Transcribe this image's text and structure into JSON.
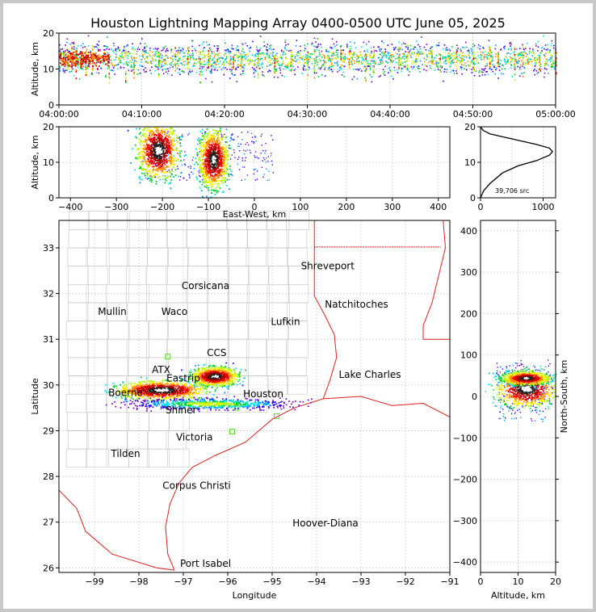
{
  "title": "Houston Lightning Mapping Array 0400-0500 UTC June 05, 2025",
  "chart_data": [
    {
      "type": "scatter",
      "panel": "altitude-time",
      "ylabel": "Altitude, km",
      "xlabel": "",
      "x_ticks": [
        "04:00:00",
        "04:10:00",
        "04:20:00",
        "04:30:00",
        "04:40:00",
        "04:50:00",
        "05:00:00"
      ],
      "x_range_minutes": [
        0,
        60
      ],
      "ylim": [
        0,
        20
      ],
      "y_ticks": [
        0,
        10,
        20
      ],
      "source_band_km": [
        5,
        18
      ],
      "core_altitude_km": 13,
      "burst_minutes": [
        0.5,
        1,
        1.5,
        2,
        2.6,
        3.2,
        4,
        6,
        8,
        9,
        12,
        14,
        15.5,
        17,
        18,
        21,
        22,
        24,
        26,
        28,
        30,
        30.8,
        32,
        34,
        35,
        37,
        38,
        40,
        41,
        42,
        45,
        46,
        48,
        50,
        52,
        53,
        55,
        56,
        58,
        60
      ]
    },
    {
      "type": "scatter",
      "panel": "altitude-eastwest",
      "xlabel": "East-West, km",
      "ylabel": "Altitude, km",
      "xlim": [
        -425,
        425
      ],
      "x_ticks": [
        -400,
        -300,
        -200,
        -100,
        0,
        100,
        200,
        300,
        400
      ],
      "ylim": [
        0,
        20
      ],
      "y_ticks": [
        0,
        10,
        20
      ],
      "clusters": [
        {
          "x": -210,
          "alt": 13.5,
          "spread_x": 22,
          "spread_alt": 4
        },
        {
          "x": -90,
          "alt": 11,
          "spread_x": 16,
          "spread_alt": 4
        }
      ]
    },
    {
      "type": "line",
      "panel": "altitude-histogram",
      "xlim": [
        0,
        1200
      ],
      "x_ticks": [
        0,
        1000
      ],
      "ylim": [
        0,
        20
      ],
      "y_ticks": [
        0,
        10,
        20
      ],
      "annotation": "39,706 src",
      "x": [
        0,
        50,
        150,
        350,
        600,
        900,
        1100,
        1150,
        1100,
        900,
        650,
        400,
        150,
        40,
        0
      ],
      "y": [
        0,
        2,
        4,
        7,
        9,
        10.5,
        12,
        13,
        14,
        15,
        16,
        17,
        18,
        19,
        20
      ]
    },
    {
      "type": "scatter",
      "panel": "map",
      "xlabel": "Longitude",
      "ylabel": "Latitude",
      "xlim": [
        -99.8,
        -91
      ],
      "ylim": [
        25.9,
        33.6
      ],
      "x_ticks": [
        -99,
        -98,
        -97,
        -96,
        -95,
        -94,
        -93,
        -92,
        -91
      ],
      "y_ticks": [
        26,
        27,
        28,
        29,
        30,
        31,
        32,
        33
      ],
      "cities": [
        {
          "name": "Shreveport",
          "lon": -93.75,
          "lat": 32.6,
          "color": "#000000"
        },
        {
          "name": "Corsicana",
          "lon": -96.5,
          "lat": 32.17,
          "color": "#000000"
        },
        {
          "name": "Natchitoches",
          "lon": -93.1,
          "lat": 31.76,
          "color": "#000000"
        },
        {
          "name": "Mullin",
          "lon": -98.6,
          "lat": 31.6,
          "color": "#ff8c1a"
        },
        {
          "name": "Waco",
          "lon": -97.2,
          "lat": 31.6,
          "color": "#000000"
        },
        {
          "name": "Lufkin",
          "lon": -94.7,
          "lat": 31.38,
          "color": "#000000"
        },
        {
          "name": "CCS",
          "lon": -96.25,
          "lat": 30.7,
          "color": "#000000"
        },
        {
          "name": "ATX",
          "lon": -97.5,
          "lat": 30.33,
          "color": "#ff8c1a"
        },
        {
          "name": "Lake Charles",
          "lon": -92.8,
          "lat": 30.23,
          "color": "#000000"
        },
        {
          "name": "Eastrip",
          "lon": -97,
          "lat": 30.15,
          "color": "#000000"
        },
        {
          "name": "Houston",
          "lon": -95.2,
          "lat": 29.8,
          "color": "#ff8c1a"
        },
        {
          "name": "Boerne",
          "lon": -98.3,
          "lat": 29.83,
          "color": "#000000"
        },
        {
          "name": "Shiner",
          "lon": -97.05,
          "lat": 29.45,
          "color": "#000000"
        },
        {
          "name": "Victoria",
          "lon": -96.75,
          "lat": 28.86,
          "color": "#000000"
        },
        {
          "name": "Tilden",
          "lon": -98.3,
          "lat": 28.5,
          "color": "#000000"
        },
        {
          "name": "Corpus Christi",
          "lon": -96.7,
          "lat": 27.8,
          "color": "#000000"
        },
        {
          "name": "Hoover-Diana",
          "lon": -93.8,
          "lat": 26.98,
          "color": "#1a1aff"
        },
        {
          "name": "Port Isabel",
          "lon": -96.5,
          "lat": 26.09,
          "color": "#000000"
        }
      ],
      "storms": [
        {
          "lon": -97.5,
          "lat": 29.9,
          "spread_lon": 0.5,
          "spread_lat": 0.1
        },
        {
          "lon": -96.3,
          "lat": 30.2,
          "spread_lon": 0.25,
          "spread_lat": 0.1
        },
        {
          "lon": -96.4,
          "lat": 29.6,
          "spread_lon": 0.9,
          "spread_lat": 0.06
        }
      ],
      "stations": [
        {
          "lon": -97.35,
          "lat": 30.62
        },
        {
          "lon": -95.9,
          "lat": 28.98
        },
        {
          "lon": -94.9,
          "lat": 29.32
        },
        {
          "lon": -95.8,
          "lat": 29.5
        }
      ]
    },
    {
      "type": "scatter",
      "panel": "northsouth-altitude",
      "xlabel": "Altitude, km",
      "ylabel": "North-South, km",
      "xlim": [
        0,
        20
      ],
      "x_ticks": [
        0,
        10,
        20
      ],
      "ylim": [
        -425,
        425
      ],
      "y_ticks": [
        -400,
        -300,
        -200,
        -100,
        0,
        100,
        200,
        300,
        400
      ],
      "clusters": [
        {
          "alt": 12,
          "ns": 20,
          "spread_alt": 4,
          "spread_ns": 22
        },
        {
          "alt": 12,
          "ns": 45,
          "spread_alt": 3,
          "spread_ns": 8
        }
      ]
    }
  ]
}
